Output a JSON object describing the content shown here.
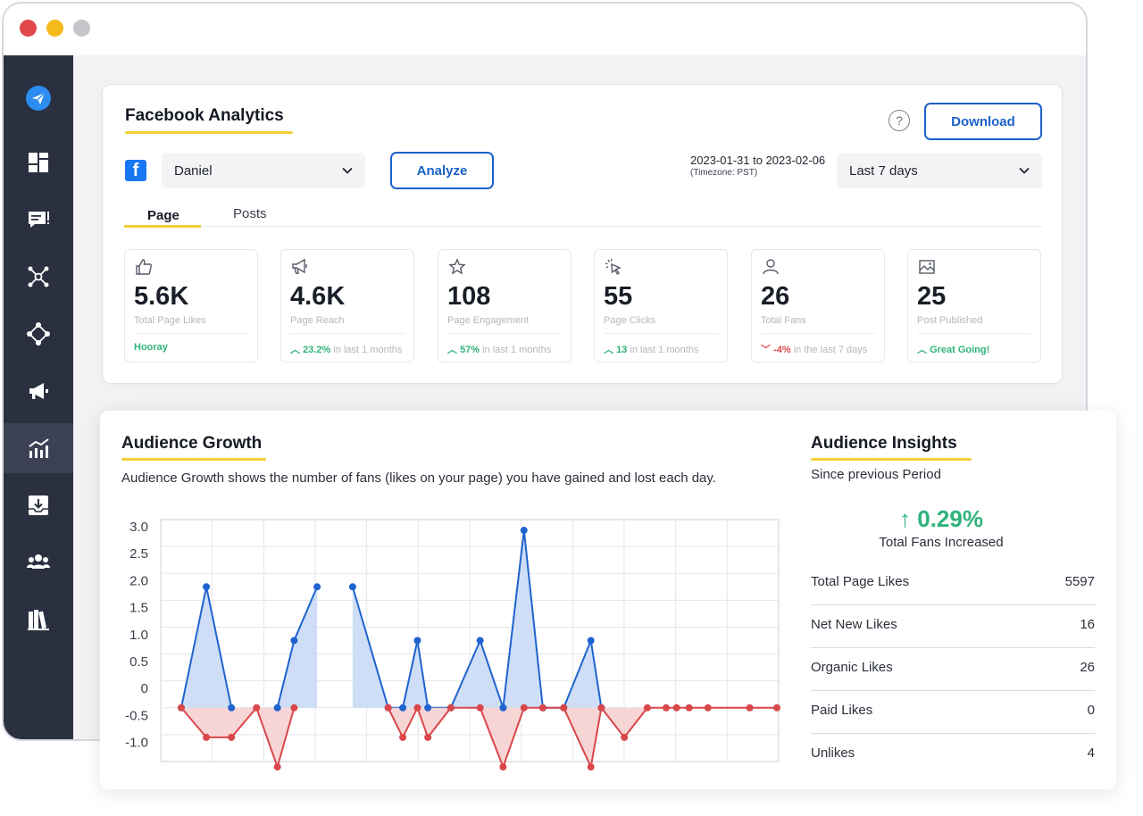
{
  "window": {
    "colors": {
      "close": "#e0484b",
      "minimize": "#f6b91c",
      "zoom": "#c5c6c9"
    }
  },
  "sidebar": {
    "items": [
      {
        "icon": "paper-plane-icon"
      },
      {
        "icon": "dashboard-icon"
      },
      {
        "icon": "messages-icon"
      },
      {
        "icon": "network-icon"
      },
      {
        "icon": "workflow-icon"
      },
      {
        "icon": "megaphone-icon"
      },
      {
        "icon": "analytics-icon",
        "active": true
      },
      {
        "icon": "inbox-download-icon"
      },
      {
        "icon": "team-icon"
      },
      {
        "icon": "library-icon"
      }
    ]
  },
  "analytics": {
    "title": "Facebook Analytics",
    "help": "?",
    "download_label": "Download",
    "account": "Daniel",
    "analyze_label": "Analyze",
    "date_range": "2023-01-31 to 2023-02-06",
    "timezone": "(Timezone: PST)",
    "period": "Last 7 days",
    "tabs": [
      "Page",
      "Posts"
    ],
    "stats": [
      {
        "icon": "thumbs-up-icon",
        "value": "5.6K",
        "label": "Total Page Likes",
        "trend": "",
        "highlight": "Hooray",
        "note": ""
      },
      {
        "icon": "megaphone-icon",
        "value": "4.6K",
        "label": "Page Reach",
        "trend": "up",
        "highlight": "23.2%",
        "note": "in last 1 months"
      },
      {
        "icon": "star-icon",
        "value": "108",
        "label": "Page Engagement",
        "trend": "up",
        "highlight": "57%",
        "note": "in last 1 months"
      },
      {
        "icon": "cursor-click-icon",
        "value": "55",
        "label": "Page Clicks",
        "trend": "up",
        "highlight": "13",
        "note": "in last 1 months"
      },
      {
        "icon": "user-icon",
        "value": "26",
        "label": "Total Fans",
        "trend": "down",
        "highlight": "-4%",
        "note": "in the last 7 days"
      },
      {
        "icon": "image-icon",
        "value": "25",
        "label": "Post Published",
        "trend": "up",
        "highlight": "Great Going!",
        "note": ""
      }
    ]
  },
  "growth": {
    "title": "Audience Growth",
    "description": "Audience Growth shows the number of fans (likes on your page) you have gained and lost each day."
  },
  "chart_data": {
    "type": "area",
    "title": "",
    "xlabel": "",
    "ylabel": "",
    "ylim": [
      -1.2,
      3.3
    ],
    "yticks": [
      "3.0",
      "2.5",
      "2.0",
      "1.5",
      "1.0",
      "0.5",
      "0",
      "-0.5",
      "-1.0"
    ],
    "grid": true,
    "x": [
      0,
      1.2,
      2.4,
      3.6,
      4.6,
      5.4,
      6.5,
      7.2,
      8.2,
      9.9,
      10.6,
      11.3,
      11.8,
      12.9,
      14.3,
      15.4,
      16.4,
      17.3,
      18.3,
      19.6,
      20.1,
      21.2,
      22.3,
      23.2,
      23.7,
      24.3,
      25.2,
      27.2,
      28.5
    ],
    "series": [
      {
        "color": "#1f63cf",
        "fill": "#cbdcf5",
        "values": [
          -0.2,
          2.05,
          -0.2,
          null,
          -0.2,
          1.05,
          2.05,
          null,
          2.05,
          -0.2,
          -0.2,
          1.05,
          -0.2,
          -0.2,
          1.05,
          -0.2,
          3.1,
          -0.2,
          -0.2,
          1.05,
          -0.2,
          null,
          null,
          null,
          null,
          null,
          null,
          null,
          null
        ]
      },
      {
        "color": "#d9474a",
        "fill": "#f7d3d3",
        "values": [
          -0.2,
          -0.75,
          -0.75,
          -0.2,
          -1.3,
          -0.2,
          null,
          null,
          null,
          -0.2,
          -0.75,
          -0.2,
          -0.75,
          -0.2,
          -0.2,
          -1.3,
          -0.2,
          -0.2,
          -0.2,
          -1.3,
          -0.2,
          -0.75,
          -0.2,
          -0.2,
          -0.2,
          -0.2,
          -0.2,
          -0.2,
          -0.2
        ]
      }
    ]
  },
  "insights": {
    "title": "Audience Insights",
    "subtitle": "Since previous Period",
    "percent": "↑ 0.29%",
    "caption": "Total Fans Increased",
    "rows": [
      {
        "label": "Total Page Likes",
        "value": "5597"
      },
      {
        "label": "Net New Likes",
        "value": "16"
      },
      {
        "label": "Organic Likes",
        "value": "26"
      },
      {
        "label": "Paid Likes",
        "value": "0"
      },
      {
        "label": "Unlikes",
        "value": "4"
      }
    ]
  }
}
